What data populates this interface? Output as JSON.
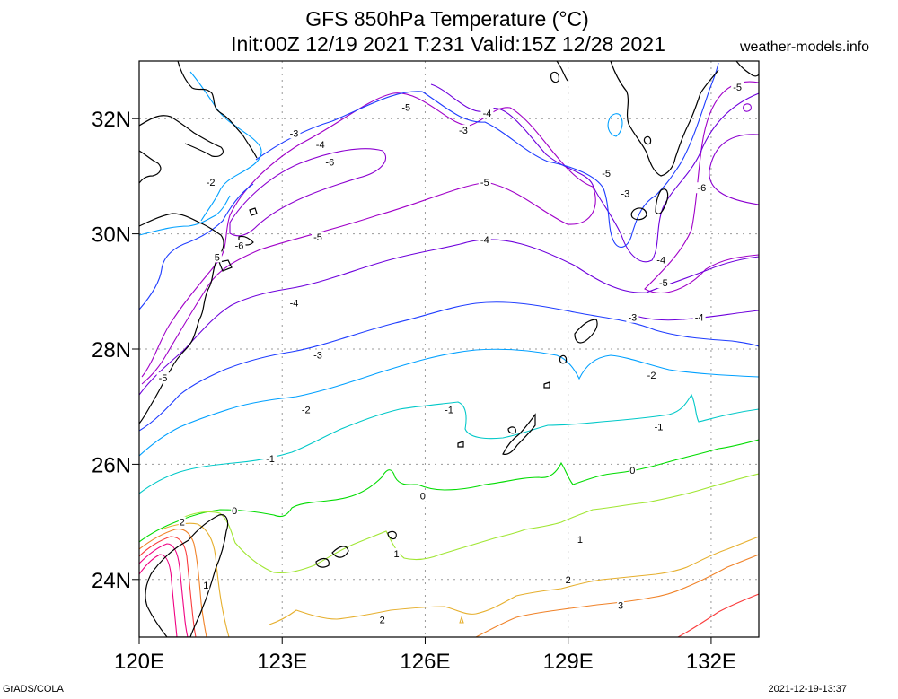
{
  "title_line1": "GFS 850hPa Temperature (°C)",
  "title_line2": "Init:00Z 12/19 2021 T:231 Valid:15Z 12/28 2021",
  "site": "weather-models.info",
  "footer_left": "GrADS/COLA",
  "footer_right": "2021-12-19-13:37",
  "map": {
    "lon_range": [
      120,
      133
    ],
    "lat_range": [
      23,
      33
    ],
    "lon_ticks": [
      120,
      123,
      126,
      129,
      132
    ],
    "lat_ticks": [
      24,
      26,
      28,
      30,
      32
    ],
    "lon_labels": [
      "120E",
      "123E",
      "126E",
      "129E",
      "132E"
    ],
    "lat_labels": [
      "24N",
      "26N",
      "28N",
      "30N",
      "32N"
    ],
    "grid": true,
    "coastline_color": "#000000"
  },
  "contours": [
    {
      "level": "-6",
      "color": "#8c00d0"
    },
    {
      "level": "-5",
      "color": "#a000c8"
    },
    {
      "level": "-4",
      "color": "#6e00dc"
    },
    {
      "level": "-3",
      "color": "#1e3cff"
    },
    {
      "level": "-2",
      "color": "#00a0ff"
    },
    {
      "level": "-1",
      "color": "#00c8c8"
    },
    {
      "level": "0",
      "color": "#00dc00"
    },
    {
      "level": "1",
      "color": "#a0e632"
    },
    {
      "level": "2",
      "color": "#e6af2d"
    },
    {
      "level": "3",
      "color": "#f08228"
    },
    {
      "level": "4",
      "color": "#fa3c3c"
    },
    {
      "level": "5",
      "color": "#f00082"
    }
  ],
  "contour_labels": [
    {
      "text": "-5",
      "lon": 125.6,
      "lat": 32.2
    },
    {
      "text": "-4",
      "lon": 127.3,
      "lat": 32.1
    },
    {
      "text": "-3",
      "lon": 126.8,
      "lat": 31.8
    },
    {
      "text": "-3",
      "lon": 123.25,
      "lat": 31.75
    },
    {
      "text": "-4",
      "lon": 123.8,
      "lat": 31.55
    },
    {
      "text": "-6",
      "lon": 124.0,
      "lat": 31.25
    },
    {
      "text": "-5",
      "lon": 129.8,
      "lat": 31.05
    },
    {
      "text": "-3",
      "lon": 130.2,
      "lat": 30.7
    },
    {
      "text": "-5",
      "lon": 127.25,
      "lat": 30.9
    },
    {
      "text": "-6",
      "lon": 131.8,
      "lat": 30.8
    },
    {
      "text": "-5",
      "lon": 132.55,
      "lat": 32.55
    },
    {
      "text": "-2",
      "lon": 121.5,
      "lat": 30.9
    },
    {
      "text": "-5",
      "lon": 123.75,
      "lat": 29.95
    },
    {
      "text": "-4",
      "lon": 127.25,
      "lat": 29.9
    },
    {
      "text": "-6",
      "lon": 122.1,
      "lat": 29.8
    },
    {
      "text": "-5",
      "lon": 121.6,
      "lat": 29.6
    },
    {
      "text": "-4",
      "lon": 130.95,
      "lat": 29.55
    },
    {
      "text": "-5",
      "lon": 131.0,
      "lat": 29.15
    },
    {
      "text": "-4",
      "lon": 123.25,
      "lat": 28.8
    },
    {
      "text": "-3",
      "lon": 130.35,
      "lat": 28.55
    },
    {
      "text": "-4",
      "lon": 131.75,
      "lat": 28.55
    },
    {
      "text": "-3",
      "lon": 123.75,
      "lat": 27.9
    },
    {
      "text": "-2",
      "lon": 130.75,
      "lat": 27.55
    },
    {
      "text": "-5",
      "lon": 120.5,
      "lat": 27.5
    },
    {
      "text": "-1",
      "lon": 126.5,
      "lat": 26.95
    },
    {
      "text": "-2",
      "lon": 123.5,
      "lat": 26.95
    },
    {
      "text": "-1",
      "lon": 130.9,
      "lat": 26.65
    },
    {
      "text": "-1",
      "lon": 122.75,
      "lat": 26.1
    },
    {
      "text": "0",
      "lon": 130.35,
      "lat": 25.9
    },
    {
      "text": "0",
      "lon": 125.95,
      "lat": 25.45
    },
    {
      "text": "0",
      "lon": 122.0,
      "lat": 25.2
    },
    {
      "text": "2",
      "lon": 120.9,
      "lat": 25.0
    },
    {
      "text": "1",
      "lon": 129.25,
      "lat": 24.7
    },
    {
      "text": "1",
      "lon": 125.4,
      "lat": 24.45
    },
    {
      "text": "1",
      "lon": 121.4,
      "lat": 23.9
    },
    {
      "text": "2",
      "lon": 129.0,
      "lat": 24.0
    },
    {
      "text": "3",
      "lon": 130.1,
      "lat": 23.55
    },
    {
      "text": "2",
      "lon": 125.1,
      "lat": 23.3
    }
  ]
}
